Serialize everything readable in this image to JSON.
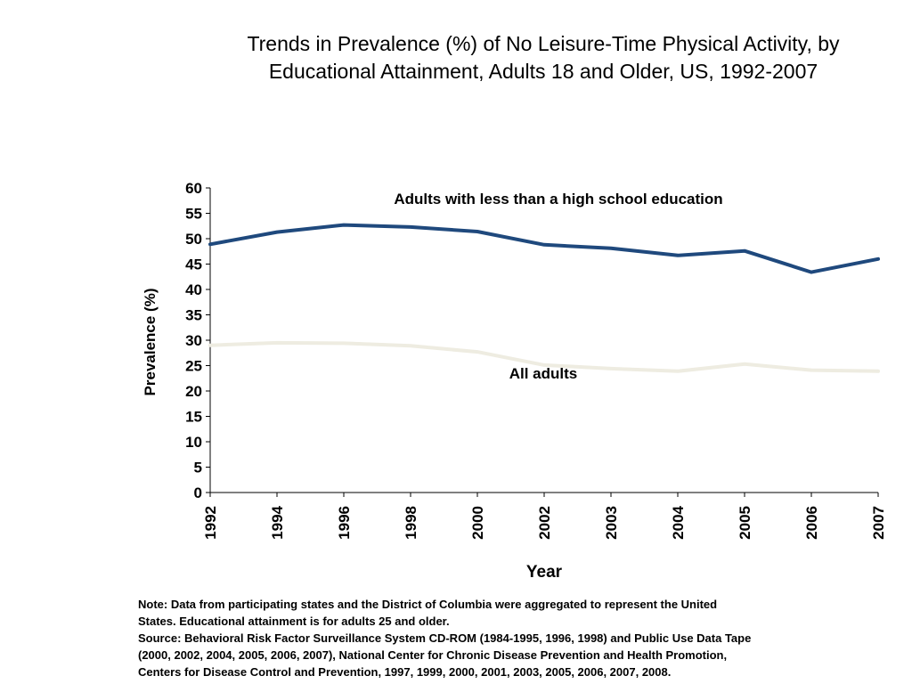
{
  "chart_data": {
    "type": "line",
    "title_line1": "Trends in Prevalence (%) of No Leisure-Time Physical Activity, by",
    "title_line2": "Educational Attainment, Adults 18 and Older, US, 1992-2007",
    "xlabel": "Year",
    "ylabel": "Prevalence (%)",
    "x": [
      "1992",
      "1994",
      "1996",
      "1998",
      "2000",
      "2002",
      "2003",
      "2004",
      "2005",
      "2006",
      "2007"
    ],
    "yticks": [
      "0",
      "5",
      "10",
      "15",
      "20",
      "25",
      "30",
      "35",
      "40",
      "45",
      "50",
      "55",
      "60"
    ],
    "ylim": [
      0,
      60
    ],
    "grid": false,
    "legend": "none",
    "series": [
      {
        "name": "Adults with less than a high school education",
        "values": [
          48.9,
          51.3,
          52.7,
          52.3,
          51.4,
          48.8,
          48.1,
          46.7,
          47.6,
          43.4,
          46.0
        ],
        "color": "#1f497d"
      },
      {
        "name": "All adults",
        "values": [
          29.0,
          29.5,
          29.4,
          28.9,
          27.7,
          25.1,
          24.4,
          23.9,
          25.3,
          24.1,
          23.9
        ],
        "color": "#eeece1"
      }
    ]
  },
  "notes": {
    "line1": "Note: Data from participating states and the District of Columbia were aggregated to represent the United",
    "line2": "States. Educational attainment is for adults 25 and older.",
    "line3": "Source: Behavioral Risk Factor Surveillance System CD-ROM (1984-1995, 1996, 1998) and Public Use Data Tape",
    "line4": "(2000, 2002, 2004, 2005, 2006, 2007), National Center for Chronic Disease Prevention and Health Promotion,",
    "line5": "Centers for Disease Control and Prevention, 1997, 1999, 2000, 2001, 2003, 2005, 2006, 2007, 2008."
  }
}
